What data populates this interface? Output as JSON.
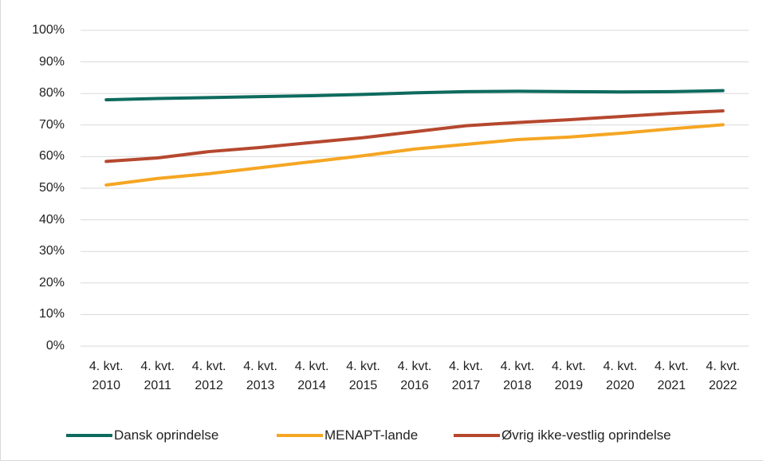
{
  "chart_data": {
    "type": "line",
    "categories": [
      "4. kvt. 2010",
      "4. kvt. 2011",
      "4. kvt. 2012",
      "4. kvt. 2013",
      "4. kvt. 2014",
      "4. kvt. 2015",
      "4. kvt. 2016",
      "4. kvt. 2017",
      "4. kvt. 2018",
      "4. kvt. 2019",
      "4. kvt. 2020",
      "4. kvt. 2021",
      "4. kvt. 2022"
    ],
    "series": [
      {
        "name": "Dansk oprindelse",
        "color": "#0e6b5e",
        "values": [
          78.0,
          78.4,
          78.7,
          79.0,
          79.3,
          79.7,
          80.2,
          80.6,
          80.7,
          80.6,
          80.5,
          80.6,
          80.9
        ]
      },
      {
        "name": "MENAPT-lande",
        "color": "#f5a623",
        "values": [
          51.0,
          53.1,
          54.6,
          56.5,
          58.4,
          60.3,
          62.4,
          63.9,
          65.4,
          66.2,
          67.4,
          68.8,
          70.1
        ]
      },
      {
        "name": "Øvrig ikke-vestlig oprindelse",
        "color": "#b5482f",
        "values": [
          58.5,
          59.6,
          61.6,
          62.9,
          64.5,
          66.0,
          67.9,
          69.8,
          70.8,
          71.7,
          72.7,
          73.7,
          74.5
        ]
      }
    ],
    "ylim": [
      0,
      100
    ],
    "yticks": [
      {
        "value": 0,
        "label": "0%"
      },
      {
        "value": 10,
        "label": "10%"
      },
      {
        "value": 20,
        "label": "20%"
      },
      {
        "value": 30,
        "label": "30%"
      },
      {
        "value": 40,
        "label": "40%"
      },
      {
        "value": 50,
        "label": "50%"
      },
      {
        "value": 60,
        "label": "60%"
      },
      {
        "value": 70,
        "label": "70%"
      },
      {
        "value": 80,
        "label": "80%"
      },
      {
        "value": 90,
        "label": "90%"
      },
      {
        "value": 100,
        "label": "100%"
      }
    ],
    "grid": true,
    "legend": "bottom"
  }
}
